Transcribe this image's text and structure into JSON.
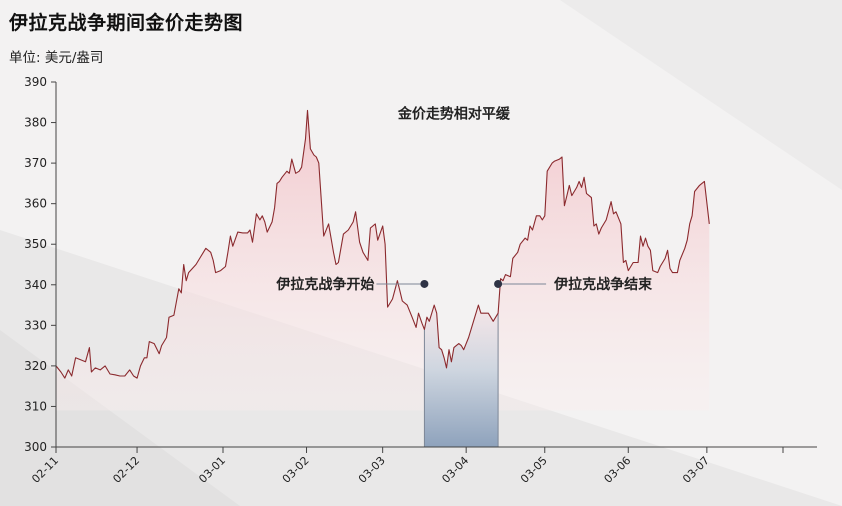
{
  "title": "伊拉克战争期间金价走势图",
  "unit": "单位: 美元/盎司",
  "colors": {
    "line": "#8b2a2e",
    "fill": "#f0c8cc",
    "war": "#8fa3bd",
    "marker": "#2e3345",
    "axis": "#444444"
  },
  "chart_data": {
    "type": "area",
    "title": "伊拉克战争期间金价走势图",
    "ylabel": "单位: 美元/盎司",
    "ylim": [
      300,
      390
    ],
    "yticks": [
      300,
      310,
      320,
      330,
      340,
      350,
      360,
      370,
      380,
      390
    ],
    "x_day_range": [
      0,
      148
    ],
    "xticks": [
      {
        "day": 0,
        "label": "02-11"
      },
      {
        "day": 16.5,
        "label": "02-12"
      },
      {
        "day": 34,
        "label": "03-01"
      },
      {
        "day": 51,
        "label": "03-02"
      },
      {
        "day": 66.5,
        "label": "03-03"
      },
      {
        "day": 83.5,
        "label": "03-04"
      },
      {
        "day": 99.5,
        "label": "03-05"
      },
      {
        "day": 116.5,
        "label": "03-06"
      },
      {
        "day": 132.5,
        "label": "03-07"
      }
    ],
    "series": [
      {
        "name": "",
        "points": [
          [
            0,
            320
          ],
          [
            1,
            318.5
          ],
          [
            1.8,
            317
          ],
          [
            2.5,
            319
          ],
          [
            3.2,
            317.5
          ],
          [
            4,
            322
          ],
          [
            5,
            321.5
          ],
          [
            6,
            321
          ],
          [
            6.8,
            324.5
          ],
          [
            7.2,
            318.5
          ],
          [
            8,
            319.5
          ],
          [
            9,
            319
          ],
          [
            10,
            320
          ],
          [
            11,
            318
          ],
          [
            12,
            317.8
          ],
          [
            13,
            317.5
          ],
          [
            14,
            317.5
          ],
          [
            15,
            319
          ],
          [
            15.8,
            317.5
          ],
          [
            16.5,
            317
          ],
          [
            17.2,
            320
          ],
          [
            18,
            322
          ],
          [
            18.5,
            322
          ],
          [
            19,
            326
          ],
          [
            20,
            325.5
          ],
          [
            21,
            323
          ],
          [
            21.5,
            325
          ],
          [
            22.5,
            327
          ],
          [
            23,
            332
          ],
          [
            24,
            332.5
          ],
          [
            25,
            339
          ],
          [
            25.5,
            338
          ],
          [
            26,
            345
          ],
          [
            26.5,
            341
          ],
          [
            27,
            343
          ],
          [
            28.5,
            345
          ],
          [
            29.5,
            347
          ],
          [
            30.5,
            349
          ],
          [
            31.5,
            348
          ],
          [
            32,
            346
          ],
          [
            32.5,
            343
          ],
          [
            33.5,
            343.5
          ],
          [
            34.5,
            344.5
          ],
          [
            35,
            348
          ],
          [
            35.5,
            352
          ],
          [
            36,
            349.5
          ],
          [
            37,
            353
          ],
          [
            38,
            352.8
          ],
          [
            39,
            352.8
          ],
          [
            39.5,
            353.5
          ],
          [
            40,
            350.5
          ],
          [
            40.8,
            357.5
          ],
          [
            41.5,
            356
          ],
          [
            42,
            357
          ],
          [
            42.5,
            355.5
          ],
          [
            43,
            353
          ],
          [
            44,
            355.5
          ],
          [
            44.5,
            359
          ],
          [
            45,
            365
          ],
          [
            45.5,
            365.5
          ],
          [
            46,
            366.5
          ],
          [
            47,
            368
          ],
          [
            47.5,
            367.5
          ],
          [
            48,
            371
          ],
          [
            48.8,
            367.5
          ],
          [
            49.5,
            368
          ],
          [
            50,
            369
          ],
          [
            50.8,
            376
          ],
          [
            51.2,
            383
          ],
          [
            51.8,
            373.5
          ],
          [
            52.5,
            372
          ],
          [
            53,
            371.5
          ],
          [
            53.5,
            370
          ],
          [
            54.5,
            352
          ],
          [
            55.5,
            355
          ],
          [
            56.5,
            348
          ],
          [
            57,
            345
          ],
          [
            57.5,
            345.5
          ],
          [
            58.5,
            352.5
          ],
          [
            59.5,
            353.5
          ],
          [
            60.5,
            355.5
          ],
          [
            61,
            358
          ],
          [
            61.8,
            350.5
          ],
          [
            62.5,
            348
          ],
          [
            63.5,
            346
          ],
          [
            64,
            354
          ],
          [
            65,
            355
          ],
          [
            65.5,
            351
          ],
          [
            66.5,
            354.5
          ],
          [
            67,
            350
          ],
          [
            67.5,
            334.5
          ],
          [
            68.5,
            336.5
          ],
          [
            69.5,
            341
          ],
          [
            70,
            338.5
          ],
          [
            70.5,
            336
          ],
          [
            71.5,
            335
          ],
          [
            72.5,
            332
          ],
          [
            73.3,
            329.5
          ],
          [
            73.8,
            333
          ],
          [
            74.5,
            330.5
          ],
          [
            75,
            329
          ],
          [
            75.5,
            332
          ],
          [
            76,
            331
          ],
          [
            77,
            335
          ],
          [
            77.5,
            333
          ],
          [
            78,
            324.5
          ],
          [
            78.5,
            324
          ],
          [
            79,
            322
          ],
          [
            79.5,
            319.5
          ],
          [
            80,
            324
          ],
          [
            80.5,
            321
          ],
          [
            81,
            324.5
          ],
          [
            81.5,
            325
          ],
          [
            82,
            325.5
          ],
          [
            82.5,
            325
          ],
          [
            83,
            324
          ],
          [
            84,
            327
          ],
          [
            85,
            331
          ],
          [
            86,
            335
          ],
          [
            86.5,
            333
          ],
          [
            87,
            333
          ],
          [
            87.5,
            333
          ],
          [
            88,
            333
          ],
          [
            89,
            331
          ],
          [
            90,
            333
          ],
          [
            90.5,
            341.5
          ],
          [
            91,
            341
          ],
          [
            91.5,
            342.5
          ],
          [
            92.5,
            342
          ],
          [
            93,
            346.5
          ],
          [
            94,
            348
          ],
          [
            94.5,
            350
          ],
          [
            95.5,
            351.5
          ],
          [
            96,
            351
          ],
          [
            96.5,
            354.5
          ],
          [
            97,
            353.5
          ],
          [
            97.8,
            357
          ],
          [
            98.5,
            357
          ],
          [
            99,
            356
          ],
          [
            99.5,
            357
          ],
          [
            100,
            368
          ],
          [
            101,
            370
          ],
          [
            101.5,
            370.5
          ],
          [
            102.5,
            371
          ],
          [
            103,
            371.5
          ],
          [
            103.5,
            359.5
          ],
          [
            104,
            362
          ],
          [
            104.5,
            364.5
          ],
          [
            105,
            362
          ],
          [
            106,
            364
          ],
          [
            106.5,
            365.5
          ],
          [
            107,
            364
          ],
          [
            107.5,
            366.5
          ],
          [
            108,
            362.5
          ],
          [
            108.5,
            362
          ],
          [
            109,
            361.5
          ],
          [
            109.5,
            354.5
          ],
          [
            110,
            355
          ],
          [
            110.5,
            352.5
          ],
          [
            111,
            354
          ],
          [
            112,
            356
          ],
          [
            113,
            360.5
          ],
          [
            113.5,
            357.5
          ],
          [
            114,
            358
          ],
          [
            115,
            355
          ],
          [
            115.5,
            345.5
          ],
          [
            116,
            346
          ],
          [
            116.5,
            343.5
          ],
          [
            117.5,
            345.5
          ],
          [
            118,
            345.5
          ],
          [
            118.5,
            345.5
          ],
          [
            119,
            352
          ],
          [
            119.5,
            349.5
          ],
          [
            120,
            351.5
          ],
          [
            120.5,
            349.5
          ],
          [
            121,
            348.5
          ],
          [
            121.5,
            343.5
          ],
          [
            122.5,
            343
          ],
          [
            123,
            344.5
          ],
          [
            124,
            346.5
          ],
          [
            124.5,
            348.5
          ],
          [
            125,
            344
          ],
          [
            125.5,
            343
          ],
          [
            126.5,
            343
          ],
          [
            127,
            346
          ],
          [
            128,
            349
          ],
          [
            128.5,
            351
          ],
          [
            129,
            355
          ],
          [
            129.5,
            357
          ],
          [
            130,
            363
          ],
          [
            131,
            364.5
          ],
          [
            131.5,
            365
          ],
          [
            132,
            365.5
          ],
          [
            133,
            355
          ]
        ]
      }
    ],
    "war_period": {
      "start_day": 75,
      "end_day": 90
    },
    "annotations": [
      {
        "text": "金价走势相对平缓",
        "day": 81,
        "value": 381
      },
      {
        "text": "伊拉克战争开始",
        "day": 75,
        "value": 340.2,
        "align": "left"
      },
      {
        "text": "伊拉克战争结束",
        "day": 90,
        "value": 340.2,
        "align": "right"
      }
    ]
  }
}
